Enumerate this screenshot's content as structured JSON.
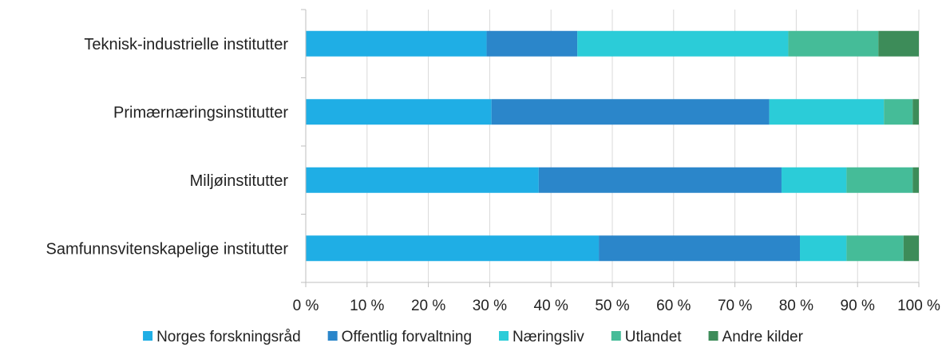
{
  "chart_data": {
    "type": "bar",
    "orientation": "horizontal",
    "stacked": true,
    "categories": [
      "Teknisk-industrielle institutter",
      "Primærnæringsinstitutter",
      "Miljøinstitutter",
      "Samfunnsvitenskapelige institutter"
    ],
    "series": [
      {
        "name": "Norges forskningsråd",
        "color": "#1FAEE5",
        "values": [
          29.5,
          30.3,
          38.0,
          47.8
        ]
      },
      {
        "name": "Offentlig forvaltning",
        "color": "#2B86CA",
        "values": [
          14.8,
          45.3,
          39.6,
          32.8
        ]
      },
      {
        "name": "Næringsliv",
        "color": "#2BCCD8",
        "values": [
          34.4,
          18.7,
          10.6,
          7.6
        ]
      },
      {
        "name": "Utlandet",
        "color": "#45BC98",
        "values": [
          14.7,
          4.7,
          10.8,
          9.3
        ]
      },
      {
        "name": "Andre kilder",
        "color": "#3D8C59",
        "values": [
          6.6,
          1.0,
          1.0,
          2.5
        ]
      }
    ],
    "x_ticks": [
      "0 %",
      "10 %",
      "20 %",
      "30 %",
      "40 %",
      "50 %",
      "60 %",
      "70 %",
      "80 %",
      "90 %",
      "100 %"
    ],
    "xlim": [
      0,
      100
    ],
    "grid": "vertical",
    "legend_position": "bottom"
  }
}
